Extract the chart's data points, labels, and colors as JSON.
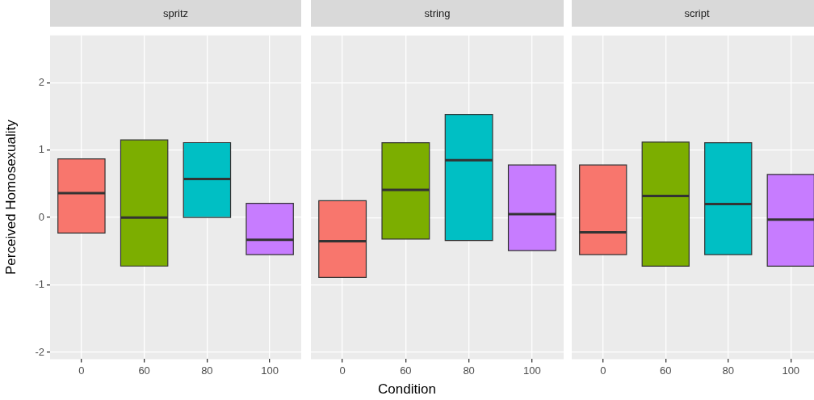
{
  "chart_data": [
    {
      "type": "box",
      "title": "spritz",
      "ylabel": "Perceived Homosexuality",
      "categories": [
        "0",
        "60",
        "80",
        "100"
      ],
      "colors": [
        "#f8766d",
        "#7cae00",
        "#00bfc4",
        "#c77cff"
      ],
      "boxes": [
        {
          "low": -0.23,
          "q1": -0.23,
          "median": 0.36,
          "q3": 0.87,
          "high": 0.87
        },
        {
          "low": -0.72,
          "q1": -0.72,
          "median": 0,
          "q3": 1.15,
          "high": 1.15
        },
        {
          "low": 0,
          "q1": 0,
          "median": 0.57,
          "q3": 1.11,
          "high": 1.11
        },
        {
          "low": -0.55,
          "q1": -0.55,
          "median": -0.33,
          "q3": 0.21,
          "high": 0.21
        }
      ],
      "ylim": [
        -2.1,
        2.7
      ],
      "yticks": [
        -2,
        -1,
        0,
        1,
        2
      ],
      "grid": true,
      "legend": false
    },
    {
      "type": "box",
      "title": "string",
      "xlabel": "Condition",
      "categories": [
        "0",
        "60",
        "80",
        "100"
      ],
      "colors": [
        "#f8766d",
        "#7cae00",
        "#00bfc4",
        "#c77cff"
      ],
      "boxes": [
        {
          "low": -0.89,
          "q1": -0.89,
          "median": -0.35,
          "q3": 0.25,
          "high": 0.25
        },
        {
          "low": -0.32,
          "q1": -0.32,
          "median": 0.41,
          "q3": 1.11,
          "high": 1.11
        },
        {
          "low": -0.34,
          "q1": -0.34,
          "median": 0.85,
          "q3": 1.53,
          "high": 1.53
        },
        {
          "low": -0.49,
          "q1": -0.49,
          "median": 0.05,
          "q3": 0.78,
          "high": 0.78
        }
      ],
      "ylim": [
        -2.1,
        2.7
      ],
      "yticks": [
        -2,
        -1,
        0,
        1,
        2
      ],
      "grid": true,
      "legend": false,
      "tick_labels": "x"
    },
    {
      "type": "box",
      "title": "script",
      "categories": [
        "0",
        "60",
        "80",
        "100"
      ],
      "colors": [
        "#f8766d",
        "#7cae00",
        "#00bfc4",
        "#c77cff"
      ],
      "boxes": [
        {
          "low": -0.55,
          "q1": -0.55,
          "median": -0.22,
          "q3": 0.78,
          "high": 0.78
        },
        {
          "low": -0.72,
          "q1": -0.72,
          "median": 0.32,
          "q3": 1.12,
          "high": 1.12
        },
        {
          "low": -0.55,
          "q1": -0.55,
          "median": 0.2,
          "q3": 1.11,
          "high": 1.11
        },
        {
          "low": -0.72,
          "q1": -0.72,
          "median": -0.03,
          "q3": 0.64,
          "high": 0.64
        }
      ],
      "ylim": [
        -2.1,
        2.7
      ],
      "yticks": [
        -2,
        -1,
        0,
        1,
        2
      ],
      "grid": true,
      "legend": false,
      "tick_labels": "x"
    }
  ]
}
